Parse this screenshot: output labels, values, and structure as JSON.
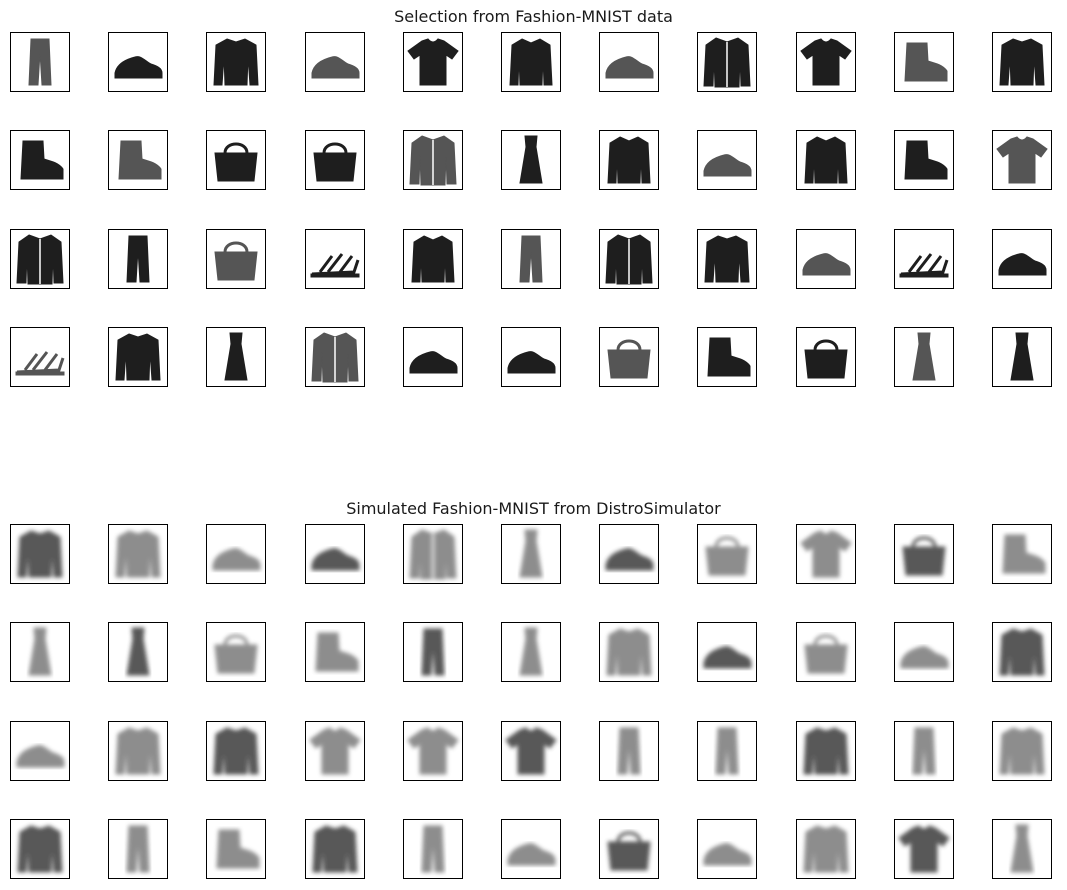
{
  "figure": {
    "panels": [
      {
        "id": "real",
        "title": "Selection from Fashion-MNIST data",
        "rows": 4,
        "cols": 11,
        "style": "sharp",
        "items": [
          "trouser",
          "sneaker",
          "pullover",
          "sneaker",
          "tshirt",
          "shirt",
          "sneaker",
          "coat",
          "tshirt",
          "ankle-boot",
          "pullover",
          "ankle-boot",
          "ankle-boot",
          "bag",
          "bag",
          "coat",
          "dress",
          "shirt",
          "sneaker",
          "shirt",
          "ankle-boot",
          "tshirt",
          "coat",
          "trouser",
          "bag",
          "sandal",
          "shirt",
          "trouser",
          "coat",
          "pullover",
          "sneaker",
          "sandal",
          "sneaker",
          "sandal",
          "pullover",
          "dress",
          "coat",
          "sneaker",
          "sneaker",
          "bag",
          "ankle-boot",
          "bag",
          "dress",
          "dress"
        ]
      },
      {
        "id": "sim",
        "title": "Simulated Fashion-MNIST from DistroSimulator",
        "rows": 4,
        "cols": 11,
        "style": "blurry",
        "items": [
          "pullover",
          "pullover",
          "sneaker",
          "sneaker",
          "coat",
          "dress",
          "sneaker",
          "bag",
          "tshirt",
          "bag",
          "ankle-boot",
          "dress",
          "dress",
          "bag",
          "ankle-boot",
          "trouser",
          "dress",
          "pullover",
          "sneaker",
          "bag",
          "sneaker",
          "pullover",
          "sneaker",
          "pullover",
          "pullover",
          "tshirt",
          "tshirt",
          "tshirt",
          "trouser",
          "trouser",
          "pullover",
          "trouser",
          "pullover",
          "pullover",
          "trouser",
          "ankle-boot",
          "pullover",
          "trouser",
          "sneaker",
          "bag",
          "sneaker",
          "pullover",
          "tshirt",
          "dress"
        ]
      }
    ],
    "colors": {
      "frame": "#000000",
      "background": "#ffffff",
      "ink": "#1e1e1e"
    }
  }
}
